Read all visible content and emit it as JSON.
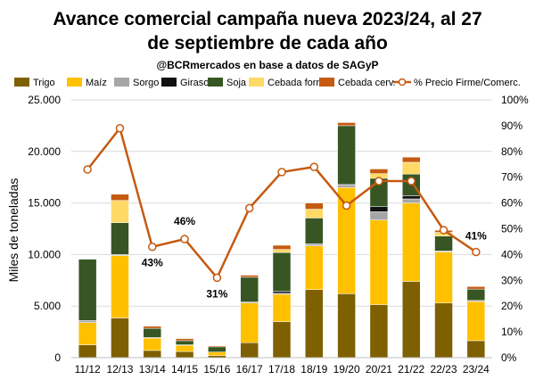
{
  "chart_data": {
    "type": "bar",
    "stacked": true,
    "title_line1": "Avance comercial campaña nueva 2023/24, al 27",
    "title_line2": "de septiembre de cada año",
    "subtitle": "@BCRmercados en base a datos de SAGyP",
    "ylabel": "Miles de toneladas",
    "ylim": [
      0,
      25000
    ],
    "y2lim": [
      0,
      100
    ],
    "y_ticks": [
      "0",
      "5.000",
      "10.000",
      "15.000",
      "20.000",
      "25.000"
    ],
    "y2_ticks": [
      "0%",
      "10%",
      "20%",
      "30%",
      "40%",
      "50%",
      "60%",
      "70%",
      "80%",
      "90%",
      "100%"
    ],
    "legend_position": "top",
    "grid": "horizontal",
    "categories": [
      "11/12",
      "12/13",
      "13/14",
      "14/15",
      "15/16",
      "16/17",
      "17/18",
      "18/19",
      "19/20",
      "20/21",
      "21/22",
      "22/23",
      "23/24"
    ],
    "series": [
      {
        "name": "Trigo",
        "color": "#7f6000",
        "values": [
          1250,
          3850,
          700,
          600,
          200,
          1450,
          3500,
          6600,
          6200,
          5150,
          7400,
          5300,
          1650
        ]
      },
      {
        "name": "Maíz",
        "color": "#ffc000",
        "values": [
          2150,
          6050,
          1200,
          600,
          350,
          3850,
          2650,
          4250,
          10300,
          8200,
          7600,
          4950,
          3800
        ]
      },
      {
        "name": "Sorgo",
        "color": "#a6a6a6",
        "values": [
          200,
          100,
          50,
          50,
          0,
          100,
          100,
          200,
          250,
          800,
          400,
          100,
          100
        ]
      },
      {
        "name": "Girasol",
        "color": "#111111",
        "values": [
          0,
          0,
          0,
          0,
          0,
          0,
          200,
          0,
          100,
          500,
          300,
          0,
          0
        ]
      },
      {
        "name": "Soja",
        "color": "#375623",
        "values": [
          5950,
          3100,
          900,
          400,
          500,
          2400,
          3750,
          2500,
          5650,
          2750,
          2100,
          1450,
          1100
        ]
      },
      {
        "name": "Cebada forr.",
        "color": "#ffd966",
        "values": [
          0,
          2150,
          0,
          0,
          0,
          0,
          300,
          850,
          0,
          450,
          1150,
          350,
          0
        ]
      },
      {
        "name": "Cebada cerv.",
        "color": "#c55a11",
        "values": [
          0,
          600,
          200,
          200,
          100,
          200,
          400,
          600,
          300,
          450,
          500,
          200,
          250
        ]
      }
    ],
    "line_series": {
      "name": "% Precio Firme/Comerc.",
      "color": "#c55a11",
      "axis": "right",
      "values": [
        73,
        89,
        43,
        46,
        31,
        58,
        72,
        74,
        59,
        68.5,
        68.5,
        49.5,
        41
      ]
    },
    "annotations": [
      {
        "label": "43%",
        "category": "13/14"
      },
      {
        "label": "46%",
        "category": "14/15"
      },
      {
        "label": "31%",
        "category": "15/16"
      },
      {
        "label": "41%",
        "category": "23/24"
      }
    ]
  }
}
